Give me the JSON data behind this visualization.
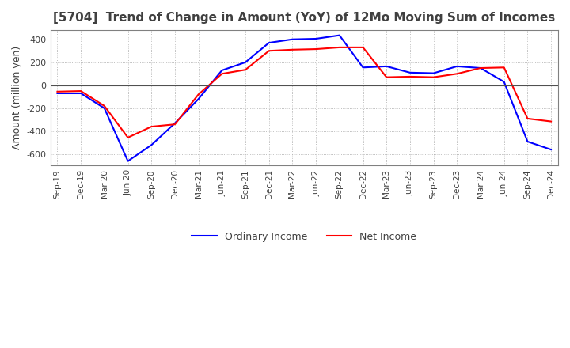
{
  "title": "[5704]  Trend of Change in Amount (YoY) of 12Mo Moving Sum of Incomes",
  "ylabel": "Amount (million yen)",
  "title_color": "#404040",
  "background_color": "#ffffff",
  "grid_color": "#aaaaaa",
  "ordinary_income_color": "#0000ff",
  "net_income_color": "#ff0000",
  "ordinary_income_label": "Ordinary Income",
  "net_income_label": "Net Income",
  "x_labels": [
    "Sep-19",
    "Dec-19",
    "Mar-20",
    "Jun-20",
    "Sep-20",
    "Dec-20",
    "Mar-21",
    "Jun-21",
    "Sep-21",
    "Dec-21",
    "Mar-22",
    "Jun-22",
    "Sep-22",
    "Dec-22",
    "Mar-23",
    "Jun-23",
    "Sep-23",
    "Dec-23",
    "Mar-24",
    "Jun-24",
    "Sep-24",
    "Dec-24"
  ],
  "ordinary_income": [
    -70,
    -70,
    -200,
    -660,
    -520,
    -330,
    -120,
    130,
    200,
    370,
    400,
    405,
    435,
    155,
    165,
    110,
    105,
    165,
    150,
    30,
    -490,
    -560
  ],
  "net_income": [
    -55,
    -50,
    -180,
    -455,
    -360,
    -340,
    -80,
    100,
    135,
    300,
    310,
    315,
    330,
    330,
    70,
    75,
    70,
    100,
    150,
    155,
    -290,
    -315
  ],
  "ylim": [
    -700,
    480
  ],
  "yticks": [
    -600,
    -400,
    -200,
    0,
    200,
    400
  ]
}
